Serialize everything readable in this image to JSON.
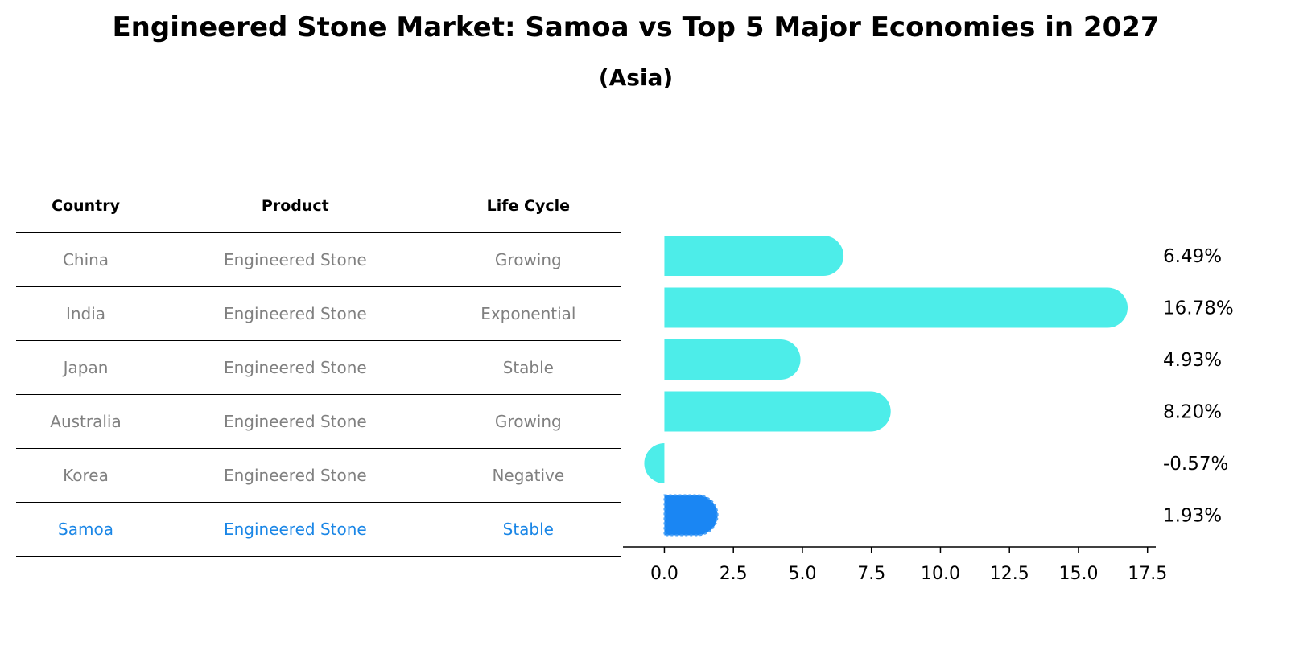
{
  "title": "Engineered Stone Market: Samoa vs Top 5 Major Economies in 2027",
  "subtitle": "(Asia)",
  "table": {
    "headers": [
      "Country",
      "Product",
      "Life Cycle"
    ],
    "rows": [
      [
        "China",
        "Engineered Stone",
        "Growing"
      ],
      [
        "India",
        "Engineered Stone",
        "Exponential"
      ],
      [
        "Japan",
        "Engineered Stone",
        "Stable"
      ],
      [
        "Australia",
        "Engineered Stone",
        "Growing"
      ],
      [
        "Korea",
        "Engineered Stone",
        "Negative"
      ],
      [
        "Samoa",
        "Engineered Stone",
        "Stable"
      ]
    ],
    "highlight_row": 5
  },
  "colors": {
    "bar": "#4dede9",
    "highlight_bar": "#1a86f3",
    "muted_text": "#808080",
    "highlight_text": "#1a86e6"
  },
  "chart_data": {
    "type": "bar",
    "orientation": "horizontal",
    "categories": [
      "China",
      "India",
      "Japan",
      "Australia",
      "Korea",
      "Samoa"
    ],
    "values": [
      6.49,
      16.78,
      4.93,
      8.2,
      -0.57,
      1.93
    ],
    "value_labels": [
      "6.49%",
      "16.78%",
      "4.93%",
      "8.20%",
      "-0.57%",
      "1.93%"
    ],
    "highlight": "Samoa",
    "xlim": [
      -1.5,
      17.8
    ],
    "xticks": [
      0.0,
      2.5,
      5.0,
      7.5,
      10.0,
      12.5,
      15.0,
      17.5
    ],
    "xtick_labels": [
      "0.0",
      "2.5",
      "5.0",
      "7.5",
      "10.0",
      "12.5",
      "15.0",
      "17.5"
    ],
    "grid": false
  }
}
